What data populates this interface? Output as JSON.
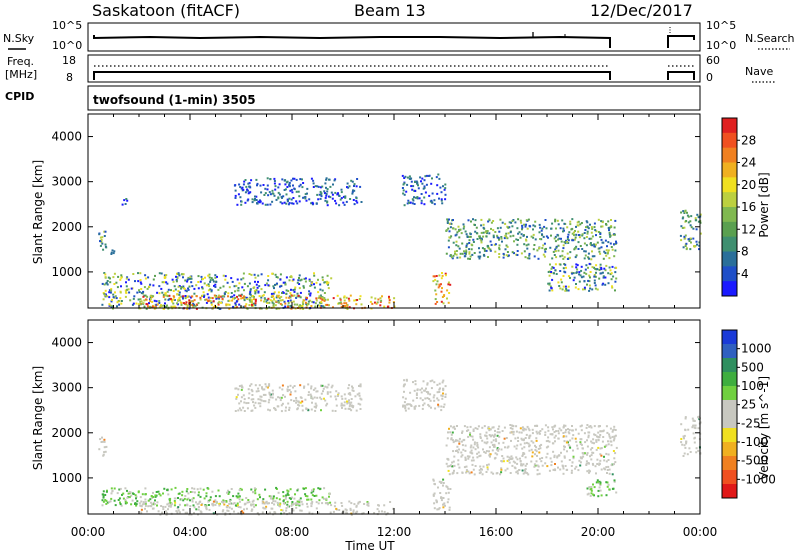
{
  "header": {
    "station": "Saskatoon (fitACF)",
    "beam": "Beam 13",
    "date": "12/Dec/2017"
  },
  "status_panels": {
    "nsky_label": "N.Sky",
    "nsky_ticks": [
      "10^5",
      "10^0"
    ],
    "nsearch_label": "N.Search",
    "nsearch_ticks": [
      "10^5",
      "10^0"
    ],
    "freq_label_line1": "Freq.",
    "freq_label_line2": "[MHz]",
    "freq_ticks": [
      "18",
      "8"
    ],
    "nave_label": "Nave",
    "nave_ticks": [
      "60",
      "0"
    ],
    "cpid_label": "CPID",
    "cpid_value": "twofsound (1-min) 3505"
  },
  "chart_data": [
    {
      "type": "heatmap",
      "name": "power",
      "ylabel": "Slant Range [km]",
      "xlabel": "",
      "ylim": [
        200,
        4500
      ],
      "xlim_hours": [
        0,
        24
      ],
      "y_ticks": [
        1000,
        2000,
        3000,
        4000
      ],
      "colorbar": {
        "label": "Power [dB]",
        "ticks": [
          "4",
          "8",
          "12",
          "16",
          "20",
          "24",
          "28"
        ],
        "colors": [
          "#1a1aff",
          "#1f4fc8",
          "#2a6f9a",
          "#3f8f70",
          "#5aa050",
          "#80b850",
          "#bcd040",
          "#f0e020",
          "#f0b020",
          "#f08020",
          "#f05020",
          "#e02020"
        ]
      },
      "echo_regions": [
        {
          "t_start": 0.4,
          "t_end": 0.7,
          "r_min": 1500,
          "r_max": 2000,
          "level": "mid"
        },
        {
          "t_start": 0.8,
          "t_end": 1.0,
          "r_min": 1400,
          "r_max": 1500,
          "level": "low"
        },
        {
          "t_start": 1.3,
          "t_end": 1.5,
          "r_min": 2500,
          "r_max": 2700,
          "level": "low"
        },
        {
          "t_start": 0.5,
          "t_end": 9.5,
          "r_min": 200,
          "r_max": 1000,
          "level": "mixed"
        },
        {
          "t_start": 2.0,
          "t_end": 12.0,
          "r_min": 200,
          "r_max": 500,
          "level": "high"
        },
        {
          "t_start": 5.7,
          "t_end": 10.7,
          "r_min": 2500,
          "r_max": 3100,
          "level": "low"
        },
        {
          "t_start": 12.3,
          "t_end": 14.0,
          "r_min": 2500,
          "r_max": 3200,
          "level": "low"
        },
        {
          "t_start": 13.5,
          "t_end": 14.2,
          "r_min": 300,
          "r_max": 1000,
          "level": "high"
        },
        {
          "t_start": 14.0,
          "t_end": 20.7,
          "r_min": 1300,
          "r_max": 2200,
          "level": "mid"
        },
        {
          "t_start": 18.0,
          "t_end": 20.7,
          "r_min": 600,
          "r_max": 1200,
          "level": "mixed"
        },
        {
          "t_start": 23.2,
          "t_end": 24.0,
          "r_min": 1500,
          "r_max": 2400,
          "level": "mid"
        }
      ]
    },
    {
      "type": "heatmap",
      "name": "velocity",
      "ylabel": "Slant Range [km]",
      "xlabel": "Time UT",
      "ylim": [
        200,
        4500
      ],
      "xlim_hours": [
        0,
        24
      ],
      "x_tick_labels": [
        "00:00",
        "04:00",
        "08:00",
        "12:00",
        "16:00",
        "20:00",
        "00:00"
      ],
      "y_ticks": [
        1000,
        2000,
        3000,
        4000
      ],
      "colorbar": {
        "label": "Velocity [m s^-1]",
        "ticks": [
          "1000",
          "500",
          "100",
          "25",
          "-25",
          "-100",
          "-500",
          "-1000"
        ],
        "colors": [
          "#1a3ad8",
          "#3060c0",
          "#2f8f5f",
          "#3fae3f",
          "#70d040",
          "#c8c8c0",
          "#c8c8c0",
          "#f0e020",
          "#f0b020",
          "#f08020",
          "#f05020",
          "#e01818"
        ]
      },
      "echo_regions": [
        {
          "t_start": 0.4,
          "t_end": 0.7,
          "r_min": 1500,
          "r_max": 2000,
          "level": "ground"
        },
        {
          "t_start": 0.5,
          "t_end": 9.5,
          "r_min": 400,
          "r_max": 800,
          "level": "positive"
        },
        {
          "t_start": 2.0,
          "t_end": 12.0,
          "r_min": 200,
          "r_max": 500,
          "level": "ground"
        },
        {
          "t_start": 5.7,
          "t_end": 10.7,
          "r_min": 2500,
          "r_max": 3100,
          "level": "ground"
        },
        {
          "t_start": 12.3,
          "t_end": 14.0,
          "r_min": 2500,
          "r_max": 3200,
          "level": "ground"
        },
        {
          "t_start": 13.5,
          "t_end": 14.2,
          "r_min": 300,
          "r_max": 1000,
          "level": "ground"
        },
        {
          "t_start": 14.0,
          "t_end": 20.7,
          "r_min": 1100,
          "r_max": 2200,
          "level": "ground"
        },
        {
          "t_start": 19.5,
          "t_end": 20.7,
          "r_min": 600,
          "r_max": 1000,
          "level": "positive"
        },
        {
          "t_start": 23.2,
          "t_end": 24.0,
          "r_min": 1500,
          "r_max": 2400,
          "level": "ground"
        }
      ]
    }
  ]
}
